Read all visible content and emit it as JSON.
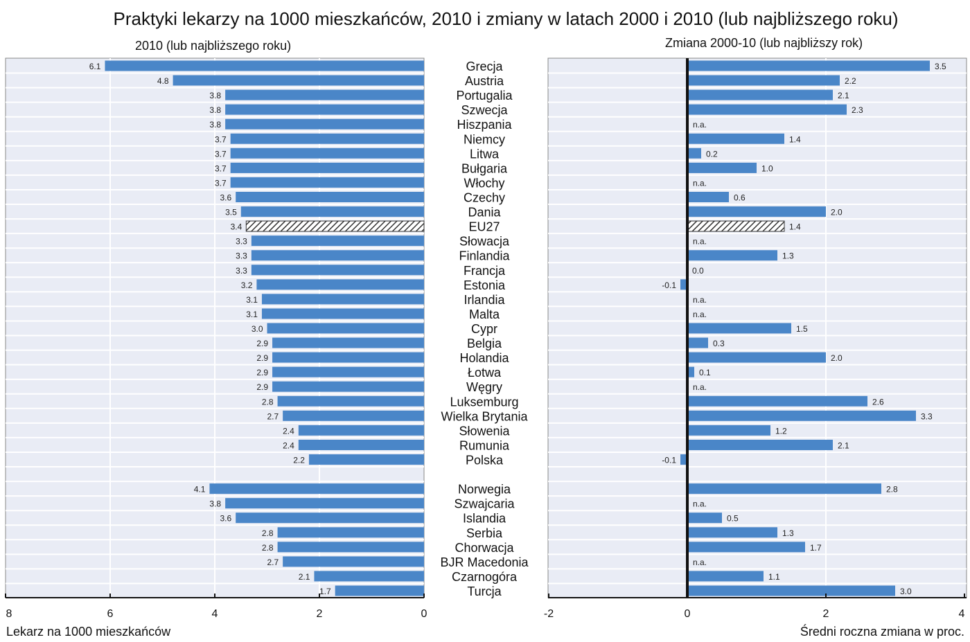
{
  "title": "Praktyki lekarzy na 1000 mieszkańców, 2010 i zmiany w latach 2000 i 2010 (lub najbliższego roku)",
  "chart_data": [
    {
      "type": "bar",
      "orientation": "horizontal",
      "subtitle": "2010 (lub najbliższego roku)",
      "xlabel": "Lekarz na 1000 mieszkańców",
      "xlim": [
        0,
        8
      ],
      "reversed": true,
      "ticks": [
        "8",
        "6",
        "4",
        "2",
        "0"
      ],
      "grid": true,
      "categories": [
        "Grecja",
        "Austria",
        "Portugalia",
        "Szwecja",
        "Hiszpania",
        "Niemcy",
        "Litwa",
        "Bułgaria",
        "Włochy",
        "Czechy",
        "Dania",
        "EU27",
        "Słowacja",
        "Finlandia",
        "Francja",
        "Estonia",
        "Irlandia",
        "Malta",
        "Cypr",
        "Belgia",
        "Holandia",
        "Łotwa",
        "Węgry",
        "Luksemburg",
        "Wielka Brytania",
        "Słowenia",
        "Rumunia",
        "Polska",
        "",
        "Norwegia",
        "Szwajcaria",
        "Islandia",
        "Serbia",
        "Chorwacja",
        "BJR Macedonia",
        "Czarnogóra",
        "Turcja"
      ],
      "values": [
        6.1,
        4.8,
        3.8,
        3.8,
        3.8,
        3.7,
        3.7,
        3.7,
        3.7,
        3.6,
        3.5,
        3.4,
        3.3,
        3.3,
        3.3,
        3.2,
        3.1,
        3.1,
        3.0,
        2.9,
        2.9,
        2.9,
        2.9,
        2.8,
        2.7,
        2.4,
        2.4,
        2.2,
        null,
        4.1,
        3.8,
        3.6,
        2.8,
        2.8,
        2.7,
        2.1,
        1.7
      ],
      "highlight": "EU27"
    },
    {
      "type": "bar",
      "orientation": "horizontal",
      "subtitle": "Zmiana 2000-10 (lub najbliższy rok)",
      "xlabel": "Średni roczna zmiana w proc.",
      "xlim": [
        -2,
        4
      ],
      "ticks": [
        "-2",
        "0",
        "2",
        "4"
      ],
      "grid": true,
      "values": [
        3.5,
        2.2,
        2.1,
        2.3,
        "n.a.",
        1.4,
        0.2,
        1.0,
        "n.a.",
        0.6,
        2.0,
        1.4,
        "n.a.",
        1.3,
        0.0,
        -0.1,
        "n.a.",
        "n.a.",
        1.5,
        0.3,
        2.0,
        0.1,
        "n.a.",
        2.6,
        3.3,
        1.2,
        2.1,
        -0.1,
        null,
        2.8,
        "n.a.",
        0.5,
        1.3,
        1.7,
        "n.a.",
        1.1,
        3.0
      ],
      "highlight": "EU27"
    }
  ],
  "colors": {
    "bar": "#4a86c8",
    "panel": "#e9ecf5",
    "grid": "#ffffff"
  }
}
